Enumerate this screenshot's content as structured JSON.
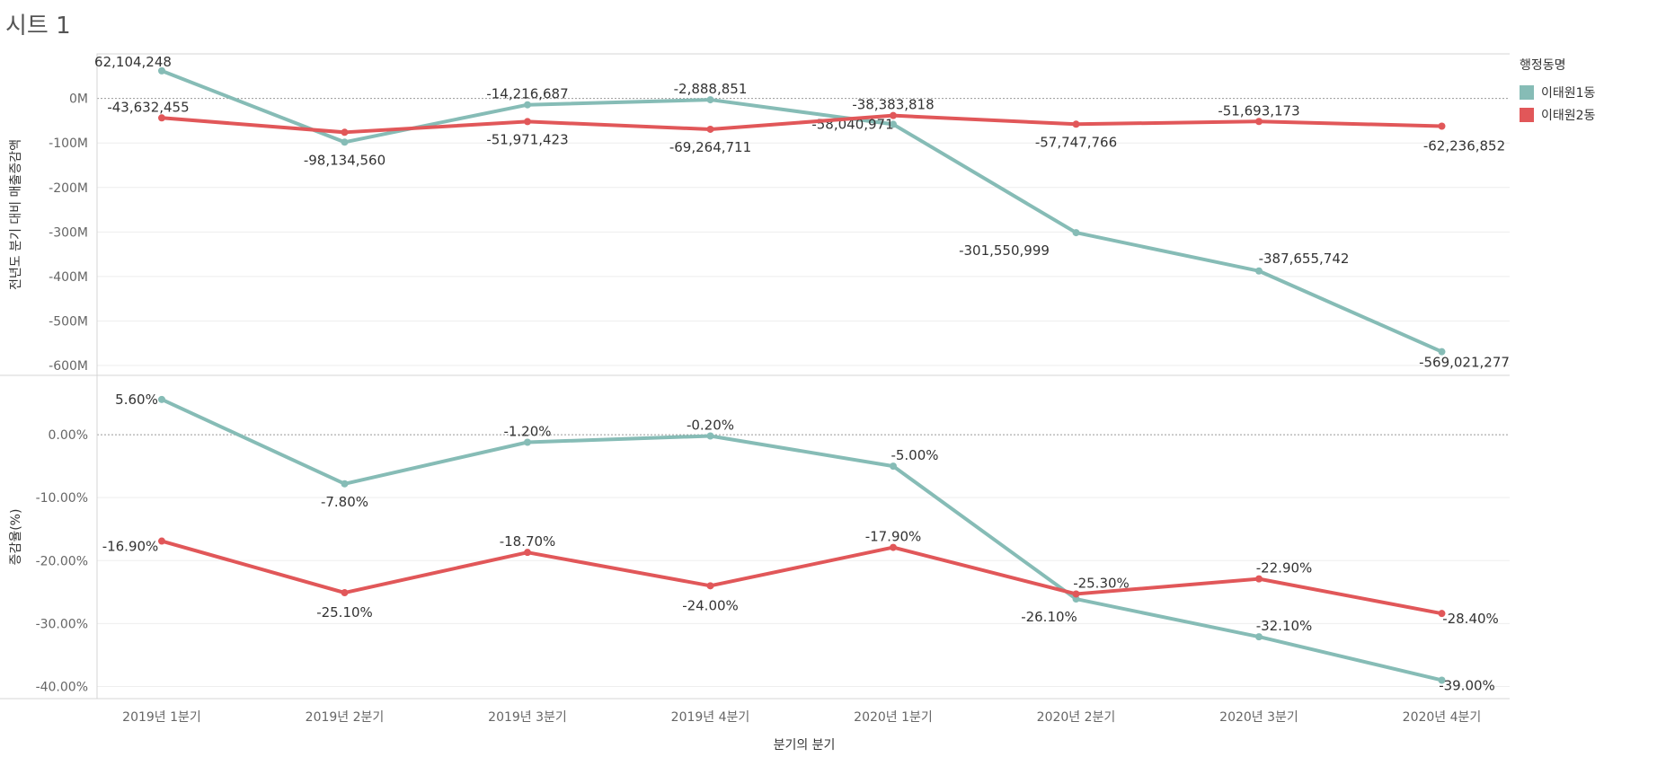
{
  "sheet": {
    "title": "시트 1"
  },
  "legend": {
    "title": "행정동명",
    "items": [
      {
        "name": "이태원1동",
        "color": "#86BCB6"
      },
      {
        "name": "이태원2동",
        "color": "#E15759"
      }
    ]
  },
  "chart_data": {
    "type": "line",
    "categories": [
      "2019년 1분기",
      "2019년 2분기",
      "2019년 3분기",
      "2019년 4분기",
      "2020년 1분기",
      "2020년 2분기",
      "2020년 3분기",
      "2020년 4분기"
    ],
    "xlabel": "분기의 분기",
    "legend_position": "right",
    "grid": true,
    "panels": [
      {
        "ylabel": "전년도 분기 대비 매출증감액",
        "ylim": [
          -600000000,
          80000000
        ],
        "yticks": [
          0,
          -100000000,
          -200000000,
          -300000000,
          -400000000,
          -500000000,
          -600000000
        ],
        "ytick_labels": [
          "0M",
          "-100M",
          "-200M",
          "-300M",
          "-400M",
          "-500M",
          "-600M"
        ],
        "series": [
          {
            "name": "이태원1동",
            "color": "#86BCB6",
            "values": [
              62104248,
              -98134560,
              -14216687,
              -2888851,
              -58040971,
              -301550999,
              -387655742,
              -569021277
            ],
            "labels": [
              "62,104,248",
              "-98,134,560",
              "-14,216,687",
              "-2,888,851",
              "-58,040,971",
              "-301,550,999",
              "-387,655,742",
              "-569,021,277"
            ]
          },
          {
            "name": "이태원2동",
            "color": "#E15759",
            "values": [
              -43632455,
              -76000000,
              -51971423,
              -69264711,
              -38383818,
              -57747766,
              -51693173,
              -62236852
            ],
            "labels": [
              "-43,632,455",
              "",
              "-51,971,423",
              "-69,264,711",
              "-38,383,818",
              "-57,747,766",
              "-51,693,173",
              "-62,236,852"
            ]
          }
        ]
      },
      {
        "ylabel": "증감율(%)",
        "ylim": [
          -40.5,
          8
        ],
        "yticks": [
          0,
          -10,
          -20,
          -30,
          -40
        ],
        "ytick_labels": [
          "0.00%",
          "-10.00%",
          "-20.00%",
          "-30.00%",
          "-40.00%"
        ],
        "series": [
          {
            "name": "이태원1동",
            "color": "#86BCB6",
            "values": [
              5.6,
              -7.8,
              -1.2,
              -0.2,
              -5.0,
              -26.1,
              -32.1,
              -39.0
            ],
            "labels": [
              "5.60%",
              "-7.80%",
              "-1.20%",
              "-0.20%",
              "-5.00%",
              "-26.10%",
              "-32.10%",
              "-39.00%"
            ]
          },
          {
            "name": "이태원2동",
            "color": "#E15759",
            "values": [
              -16.9,
              -25.1,
              -18.7,
              -24.0,
              -17.9,
              -25.3,
              -22.9,
              -28.4
            ],
            "labels": [
              "-16.90%",
              "-25.10%",
              "-18.70%",
              "-24.00%",
              "-17.90%",
              "-25.30%",
              "-22.90%",
              "-28.40%"
            ]
          }
        ]
      }
    ]
  }
}
